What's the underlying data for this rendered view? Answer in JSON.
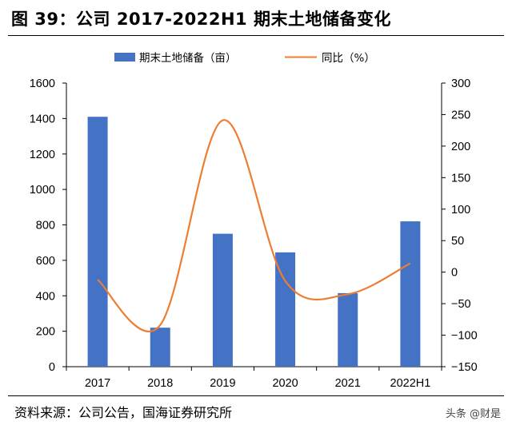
{
  "title": "图 39：公司 2017-2022H1 期末土地储备变化",
  "source": "资料来源：公司公告，国海证券研究所",
  "watermark": "头条 @财是",
  "chart_data": {
    "type": "bar",
    "categories": [
      "2017",
      "2018",
      "2019",
      "2020",
      "2021",
      "2022H1"
    ],
    "series": [
      {
        "name": "期末土地储备（亩）",
        "type": "bar",
        "axis": "left",
        "color": "#4472C4",
        "values": [
          1410,
          220,
          750,
          645,
          415,
          820
        ]
      },
      {
        "name": "同比（%）",
        "type": "line",
        "axis": "right",
        "color": "#ED7D31",
        "smooth": true,
        "values": [
          -12,
          -84,
          241,
          -14,
          -35,
          14
        ]
      }
    ],
    "y_left": {
      "min": 0,
      "max": 1600,
      "ticks": [
        0,
        200,
        400,
        600,
        800,
        1000,
        1200,
        1400,
        1600
      ]
    },
    "y_right": {
      "min": -150,
      "max": 300,
      "ticks": [
        "300",
        "250",
        "200",
        "150",
        "100",
        "50",
        "0",
        "−50",
        "−100",
        "−150"
      ]
    },
    "legend_position": "top",
    "grid": false
  }
}
